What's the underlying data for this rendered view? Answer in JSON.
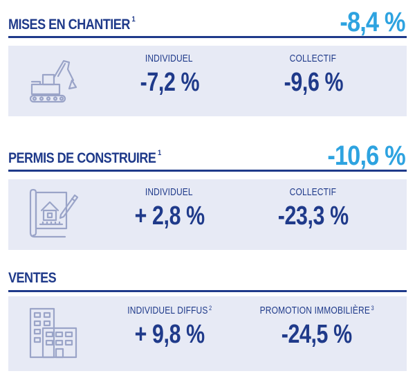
{
  "sections": [
    {
      "title": "MISES EN CHANTIER",
      "note": "1",
      "headline": "-8,4 %",
      "icon": "excavator-icon",
      "columns": [
        {
          "label": "INDIVIDUEL",
          "note": "",
          "value": "-7,2 %"
        },
        {
          "label": "COLLECTIF",
          "note": "",
          "value": "-9,6 %"
        }
      ]
    },
    {
      "title": "PERMIS DE CONSTRUIRE",
      "note": "1",
      "headline": "-10,6 %",
      "icon": "blueprint-icon",
      "columns": [
        {
          "label": "INDIVIDUEL",
          "note": "",
          "value": "+ 2,8 %"
        },
        {
          "label": "COLLECTIF",
          "note": "",
          "value": "-23,3 %"
        }
      ]
    },
    {
      "title": "VENTES",
      "note": "",
      "headline": "",
      "icon": "buildings-icon",
      "columns": [
        {
          "label": "INDIVIDUEL DIFFUS",
          "note": "2",
          "value": "+ 9,8 %"
        },
        {
          "label": "PROMOTION IMMOBILIÈRE",
          "note": "3",
          "value": "-24,5 %"
        }
      ]
    }
  ],
  "colors": {
    "primary": "#1f3a8a",
    "accent": "#2ea3e0",
    "card": "#e7eaf5",
    "icon": "#9aa4c8"
  }
}
